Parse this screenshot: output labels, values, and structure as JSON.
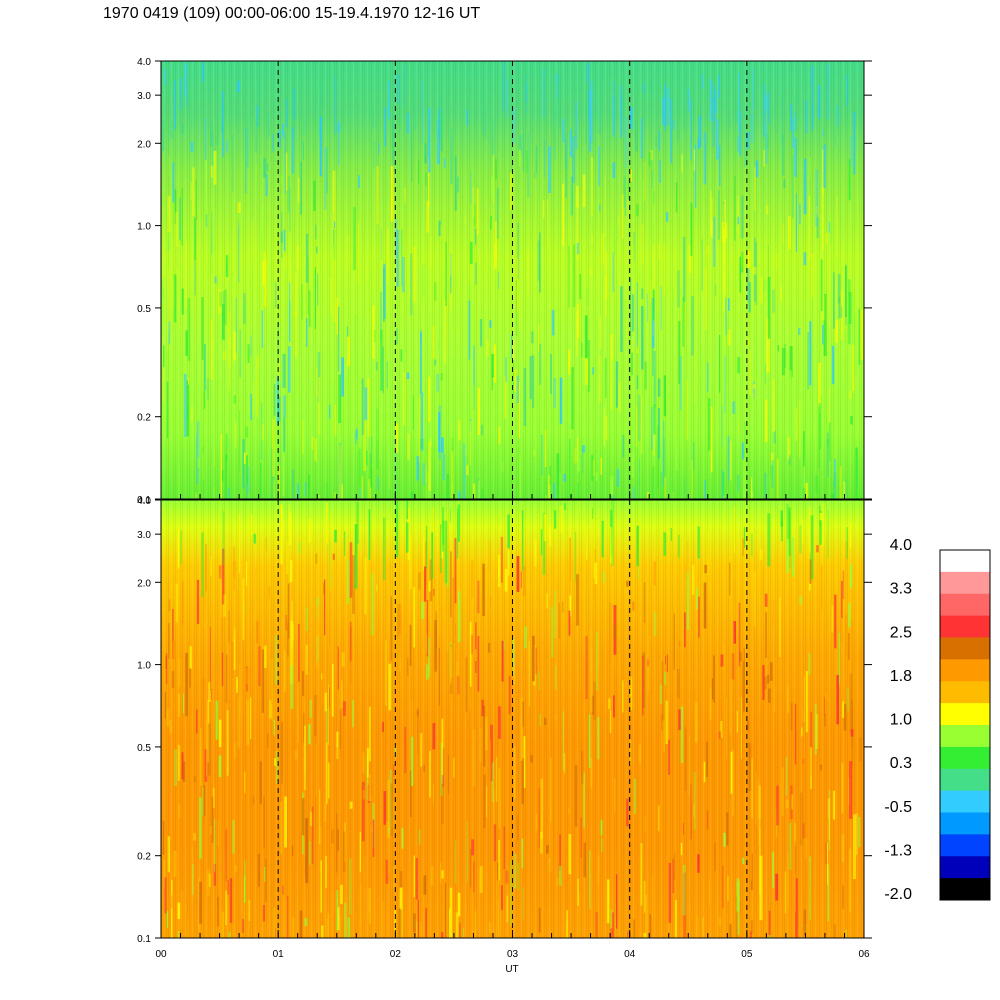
{
  "title": "1970 0419 (109) 00:00-06:00 15-19.4.1970  12-16 UT",
  "colors": {
    "background": "#ffffff",
    "axis": "#000000",
    "dashed": "#000000"
  },
  "chart_data": [
    {
      "type": "heatmap",
      "panel": "top",
      "title": "",
      "xlabel": "",
      "ylabel": "",
      "x_ticks": [
        "00",
        "01",
        "02",
        "03",
        "04",
        "05",
        "06"
      ],
      "x_range": [
        0,
        6
      ],
      "y_scale": "log",
      "y_range": [
        0.1,
        4.0
      ],
      "y_ticks": [
        {
          "value": 0.1,
          "label": "0.1"
        },
        {
          "value": 0.2,
          "label": "0.2"
        },
        {
          "value": 0.5,
          "label": "0.5"
        },
        {
          "value": 1.0,
          "label": "1.0"
        },
        {
          "value": 2.0,
          "label": "2.0"
        },
        {
          "value": 3.0,
          "label": "3.0"
        },
        {
          "value": 4.0,
          "label": "4.0"
        }
      ],
      "dashed_hour_lines": [
        1,
        2,
        3,
        4,
        5
      ],
      "dominant_levels": "green-yellow (0.3 to 1.0), blue-green near top"
    },
    {
      "type": "heatmap",
      "panel": "bottom",
      "title": "",
      "xlabel": "UT",
      "ylabel": "",
      "x_ticks": [
        "00",
        "01",
        "02",
        "03",
        "04",
        "05",
        "06"
      ],
      "x_range": [
        0,
        6
      ],
      "y_scale": "log",
      "y_range": [
        0.1,
        4.0
      ],
      "y_ticks": [
        {
          "value": 0.1,
          "label": "0.1"
        },
        {
          "value": 0.2,
          "label": "0.2"
        },
        {
          "value": 0.5,
          "label": "0.5"
        },
        {
          "value": 1.0,
          "label": "1.0"
        },
        {
          "value": 2.0,
          "label": "2.0"
        },
        {
          "value": 3.0,
          "label": "3.0"
        },
        {
          "value": 4.0,
          "label": "4.0"
        }
      ],
      "dashed_hour_lines": [
        1,
        2,
        3,
        4,
        5
      ],
      "dominant_levels": "orange (1.8 to 2.5), yellow-green near top"
    }
  ],
  "colorbar": {
    "labels": [
      "4.0",
      "3.3",
      "2.5",
      "1.8",
      "1.0",
      "0.3",
      "-0.5",
      "-1.3",
      "-2.0"
    ],
    "colors_top_to_bottom": [
      "#ffffff",
      "#ff9999",
      "#ff6666",
      "#ff3333",
      "#d87000",
      "#ff9900",
      "#ffbb00",
      "#ffff00",
      "#99ff33",
      "#33ee33",
      "#44dd88",
      "#33ccff",
      "#0099ff",
      "#0044ff",
      "#0000bb",
      "#000000"
    ]
  }
}
